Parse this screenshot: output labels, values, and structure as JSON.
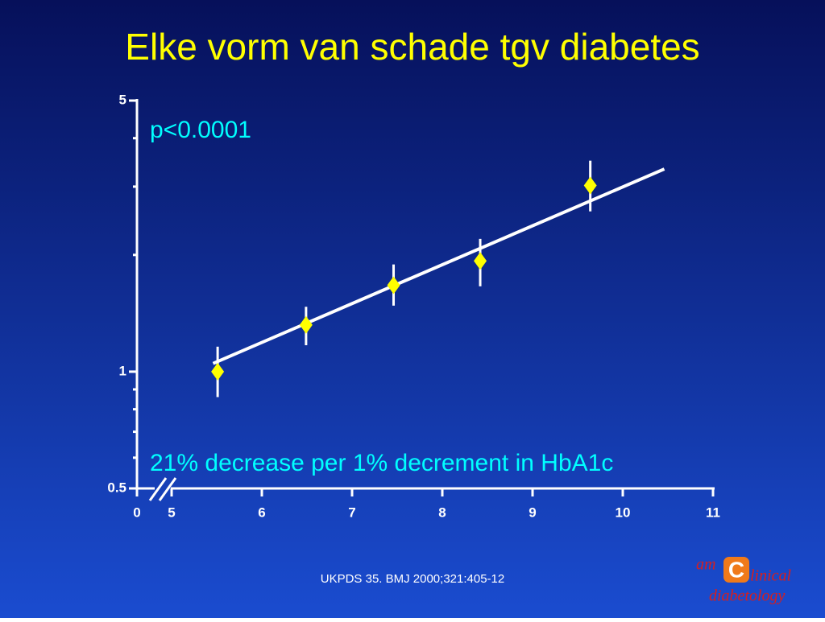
{
  "chart_data": {
    "type": "scatter",
    "title": "Elke vorm van schade tgv diabetes",
    "annotations": [
      "p<0.0001",
      "21% decrease per 1% decrement in HbA1c"
    ],
    "source": "UKPDS 35. BMJ 2000;321:405-12",
    "x": [
      5.51,
      6.49,
      7.46,
      8.42,
      9.64
    ],
    "series": [
      {
        "color": "#ffff00",
        "values": [
          1.0,
          1.32,
          1.67,
          1.93,
          3.02
        ],
        "lower": [
          0.86,
          1.17,
          1.48,
          1.66,
          2.59
        ],
        "upper": [
          1.16,
          1.47,
          1.89,
          2.2,
          3.5
        ]
      }
    ],
    "fit_line": {
      "x": [
        5.46,
        10.46
      ],
      "y": [
        1.05,
        3.33
      ],
      "color": "#ffffff"
    },
    "xlim": [
      5,
      11
    ],
    "xticks": [
      0,
      5,
      6,
      7,
      8,
      9,
      10,
      11
    ],
    "axis_break": true,
    "ylim": [
      0.5,
      5
    ],
    "yticks": [
      0.5,
      1,
      5
    ],
    "yminor": [
      0.6,
      0.7,
      0.8,
      0.9,
      2,
      3,
      4
    ],
    "log_y": true
  },
  "logo": {
    "prefix": "am",
    "letter": "C",
    "word": "linical",
    "line2": "diabetology"
  }
}
